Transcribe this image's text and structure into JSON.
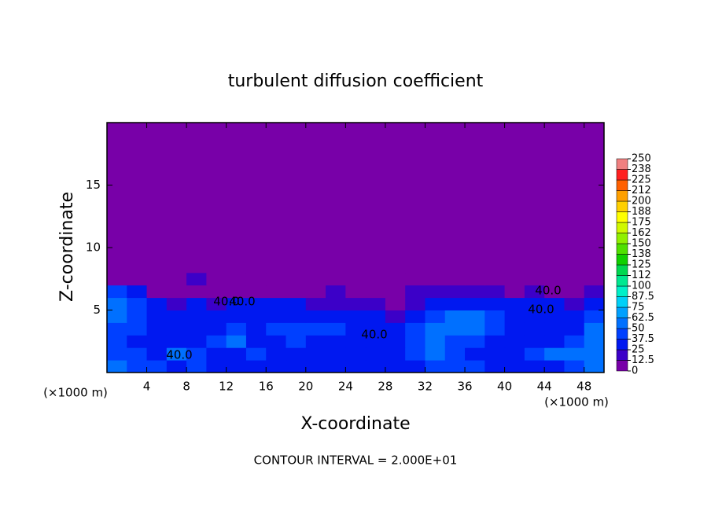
{
  "chart_data": {
    "type": "heatmap",
    "title": "turbulent diffusion coefficient",
    "x_label": "X-coordinate",
    "y_label": "Z-coordinate",
    "x_unit_left": "(×1000 m)",
    "x_unit_right": "(×1000 m)",
    "footer": "CONTOUR INTERVAL = 2.000E+01",
    "annotations": [
      "40.0",
      "40.0",
      "40.0",
      "40.0",
      "40.0",
      "40.0"
    ],
    "xlim": [
      0,
      50
    ],
    "ylim": [
      0,
      20
    ],
    "xticks": [
      4,
      8,
      12,
      16,
      20,
      24,
      28,
      32,
      36,
      40,
      44,
      48
    ],
    "yticks": [
      5,
      10,
      15
    ],
    "x_bins": [
      0,
      2,
      4,
      6,
      8,
      10,
      12,
      14,
      16,
      18,
      20,
      22,
      24,
      26,
      28,
      30,
      32,
      34,
      36,
      38,
      40,
      42,
      44,
      46,
      48,
      50
    ],
    "z_bins": [
      0,
      1,
      2,
      3,
      4,
      5,
      6,
      7,
      8,
      20
    ],
    "z": [
      [
        50,
        45,
        40,
        35,
        40,
        35,
        30,
        35,
        30,
        30,
        30,
        35,
        30,
        30,
        30,
        35,
        40,
        45,
        40,
        35,
        30,
        30,
        35,
        45,
        50
      ],
      [
        45,
        40,
        35,
        50,
        40,
        30,
        35,
        40,
        30,
        30,
        30,
        30,
        35,
        30,
        30,
        40,
        55,
        45,
        35,
        30,
        35,
        40,
        55,
        60,
        50
      ],
      [
        40,
        35,
        30,
        35,
        30,
        40,
        50,
        30,
        35,
        40,
        30,
        30,
        30,
        30,
        35,
        45,
        50,
        40,
        40,
        30,
        30,
        30,
        35,
        45,
        55
      ],
      [
        45,
        40,
        30,
        35,
        30,
        35,
        45,
        30,
        40,
        45,
        45,
        40,
        35,
        30,
        30,
        45,
        60,
        50,
        50,
        40,
        35,
        30,
        30,
        35,
        50
      ],
      [
        55,
        40,
        35,
        30,
        30,
        30,
        35,
        30,
        30,
        35,
        30,
        30,
        25,
        25,
        20,
        30,
        45,
        55,
        50,
        40,
        30,
        30,
        30,
        30,
        40
      ],
      [
        60,
        40,
        25,
        20,
        25,
        20,
        25,
        25,
        30,
        25,
        20,
        20,
        15,
        15,
        10,
        20,
        30,
        30,
        35,
        30,
        30,
        25,
        30,
        20,
        30
      ],
      [
        40,
        25,
        10,
        10,
        12,
        10,
        10,
        5,
        5,
        5,
        5,
        15,
        10,
        10,
        10,
        20,
        20,
        20,
        15,
        15,
        10,
        15,
        10,
        5,
        15
      ],
      [
        10,
        5,
        0,
        0,
        15,
        0,
        0,
        0,
        0,
        0,
        0,
        10,
        0,
        0,
        0,
        5,
        0,
        0,
        0,
        0,
        0,
        0,
        0,
        0,
        0
      ],
      [
        0,
        0,
        0,
        0,
        0,
        0,
        0,
        0,
        0,
        0,
        0,
        0,
        0,
        0,
        0,
        0,
        0,
        0,
        0,
        0,
        0,
        0,
        0,
        0,
        0
      ]
    ],
    "colorbar_ticks": [
      0,
      12.5,
      25,
      37.5,
      50,
      62.5,
      75,
      87.5,
      100,
      {
        "value": 112.5,
        "label": "112"
      },
      125,
      {
        "value": 137.5,
        "label": "138"
      },
      150,
      {
        "value": 162.5,
        "label": "162"
      },
      175,
      {
        "value": 187.5,
        "label": "188"
      },
      200,
      {
        "value": 212.5,
        "label": "212"
      },
      225,
      {
        "value": 237.5,
        "label": "238"
      },
      250
    ],
    "colors": [
      "#7800a8",
      "#3c00c8",
      "#0018f0",
      "#0040ff",
      "#0070ff",
      "#00a0ff",
      "#00d0f8",
      "#00f0c8",
      "#00e890",
      "#00d850",
      "#10d000",
      "#50e000",
      "#90f000",
      "#d0f800",
      "#ffff00",
      "#ffd000",
      "#ffa000",
      "#ff6000",
      "#ff2020",
      "#f08080"
    ]
  }
}
